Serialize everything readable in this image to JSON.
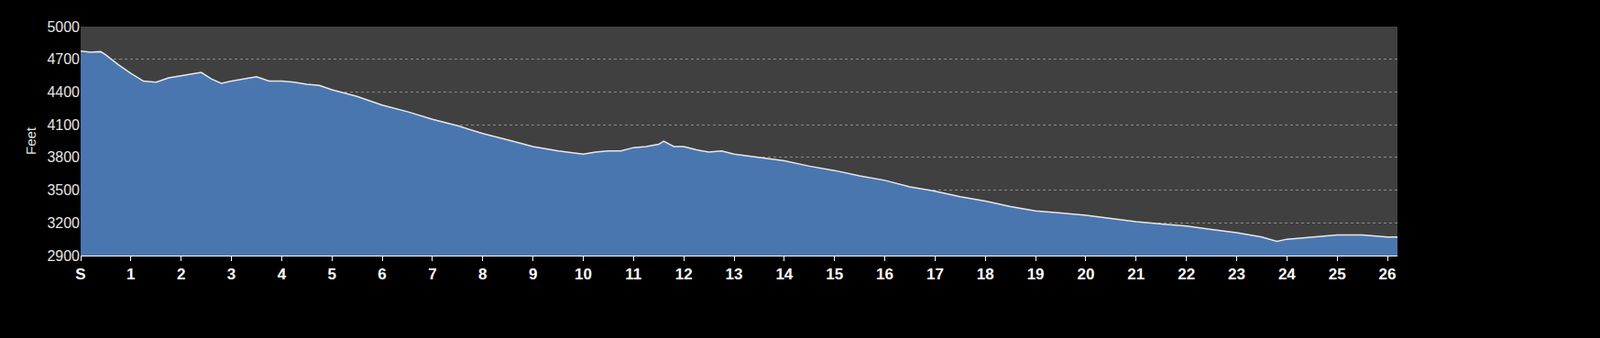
{
  "chart_data": {
    "type": "area",
    "y_label": "Feet",
    "color": "#4a76b0",
    "grid": true,
    "x": [
      0,
      0.2,
      0.4,
      0.5,
      0.75,
      1.0,
      1.25,
      1.5,
      1.75,
      2.0,
      2.25,
      2.4,
      2.6,
      2.8,
      3.0,
      3.25,
      3.5,
      3.75,
      4.0,
      4.25,
      4.5,
      4.75,
      5.0,
      5.5,
      6.0,
      6.5,
      7.0,
      7.5,
      8.0,
      8.5,
      9.0,
      9.5,
      10.0,
      10.25,
      10.5,
      10.75,
      11.0,
      11.25,
      11.5,
      11.6,
      11.8,
      12.0,
      12.25,
      12.5,
      12.75,
      13.0,
      13.5,
      14.0,
      14.5,
      15.0,
      15.5,
      16.0,
      16.5,
      17.0,
      17.5,
      18.0,
      18.5,
      19.0,
      19.5,
      20.0,
      20.5,
      21.0,
      21.5,
      22.0,
      22.5,
      23.0,
      23.5,
      23.8,
      24.0,
      24.5,
      25.0,
      25.5,
      26.0,
      26.2
    ],
    "values": [
      4775,
      4765,
      4770,
      4740,
      4650,
      4570,
      4500,
      4490,
      4530,
      4550,
      4570,
      4580,
      4520,
      4480,
      4500,
      4520,
      4540,
      4500,
      4500,
      4490,
      4470,
      4460,
      4420,
      4360,
      4280,
      4220,
      4150,
      4090,
      4020,
      3960,
      3900,
      3860,
      3830,
      3850,
      3860,
      3860,
      3890,
      3900,
      3920,
      3950,
      3900,
      3900,
      3870,
      3850,
      3860,
      3830,
      3800,
      3770,
      3720,
      3680,
      3630,
      3590,
      3530,
      3490,
      3440,
      3400,
      3350,
      3310,
      3290,
      3270,
      3240,
      3210,
      3190,
      3170,
      3140,
      3110,
      3070,
      3030,
      3050,
      3070,
      3090,
      3090,
      3070,
      3070
    ],
    "xlim": [
      0,
      26.2
    ],
    "xticks": [
      {
        "value": 0,
        "label": "S"
      },
      1,
      2,
      3,
      4,
      5,
      6,
      7,
      8,
      9,
      10,
      11,
      12,
      13,
      14,
      15,
      16,
      17,
      18,
      19,
      20,
      21,
      22,
      23,
      24,
      25,
      26
    ],
    "ylim": [
      2900,
      5000
    ],
    "yticks": [
      2900,
      3200,
      3500,
      3800,
      4100,
      4400,
      4700,
      5000
    ]
  }
}
